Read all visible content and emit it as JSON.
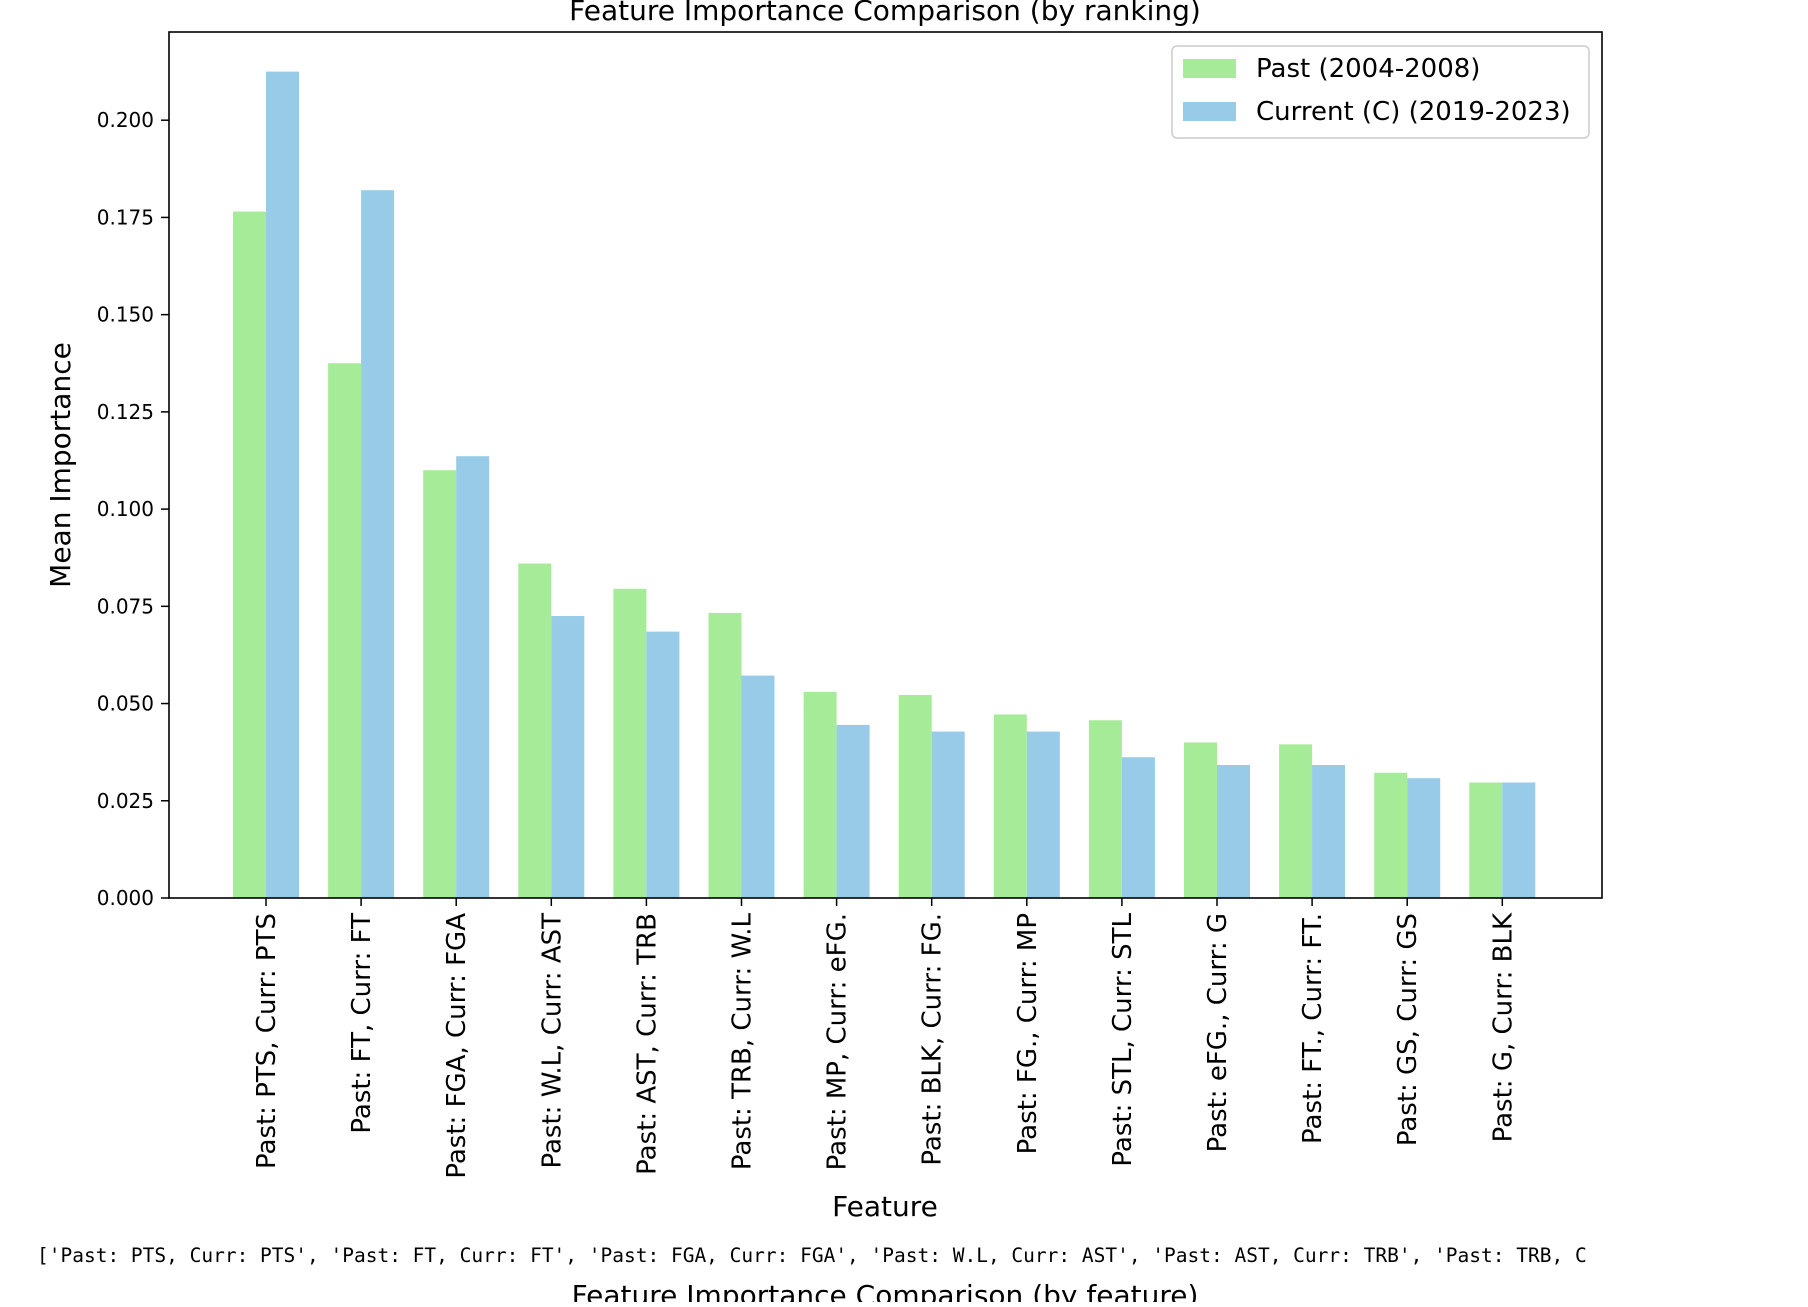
{
  "chart_data": {
    "type": "bar",
    "title": "Feature Importance Comparison (by ranking)",
    "xlabel": "Feature",
    "ylabel": "Mean Importance",
    "ylim": [
      0,
      0.224
    ],
    "yticks": [
      "0.000",
      "0.025",
      "0.050",
      "0.075",
      "0.100",
      "0.125",
      "0.150",
      "0.175",
      "0.200"
    ],
    "grid": false,
    "legend_position": "top-right",
    "categories": [
      "Past: PTS, Curr: PTS",
      "Past: FT, Curr: FT",
      "Past: FGA, Curr: FGA",
      "Past: W.L, Curr: AST",
      "Past: AST, Curr: TRB",
      "Past: TRB, Curr: W.L",
      "Past: MP, Curr: eFG.",
      "Past: BLK, Curr: FG.",
      "Past: FG., Curr: MP",
      "Past: STL, Curr: STL",
      "Past: eFG., Curr: G",
      "Past: FT., Curr: FT.",
      "Past: GS, Curr: GS",
      "Past: G, Curr: BLK"
    ],
    "series": [
      {
        "name": "Past (2004-2008)",
        "color": "#a6eb97",
        "values": [
          0.1765,
          0.1375,
          0.11,
          0.086,
          0.0795,
          0.0733,
          0.053,
          0.0522,
          0.0472,
          0.0457,
          0.04,
          0.0395,
          0.0322,
          0.0297
        ]
      },
      {
        "name": "Current (C) (2019-2023)",
        "color": "#97cbe8",
        "values": [
          0.2125,
          0.182,
          0.1136,
          0.0725,
          0.0685,
          0.0572,
          0.0445,
          0.0428,
          0.0428,
          0.0362,
          0.0342,
          0.0342,
          0.0308,
          0.0297
        ]
      }
    ]
  },
  "footer": {
    "printed_list": "['Past: PTS, Curr: PTS', 'Past: FT, Curr: FT', 'Past: FGA, Curr: FGA', 'Past: W.L, Curr: AST', 'Past: AST, Curr: TRB', 'Past: TRB, C",
    "next_title": "Feature Importance Comparison (by feature)"
  }
}
